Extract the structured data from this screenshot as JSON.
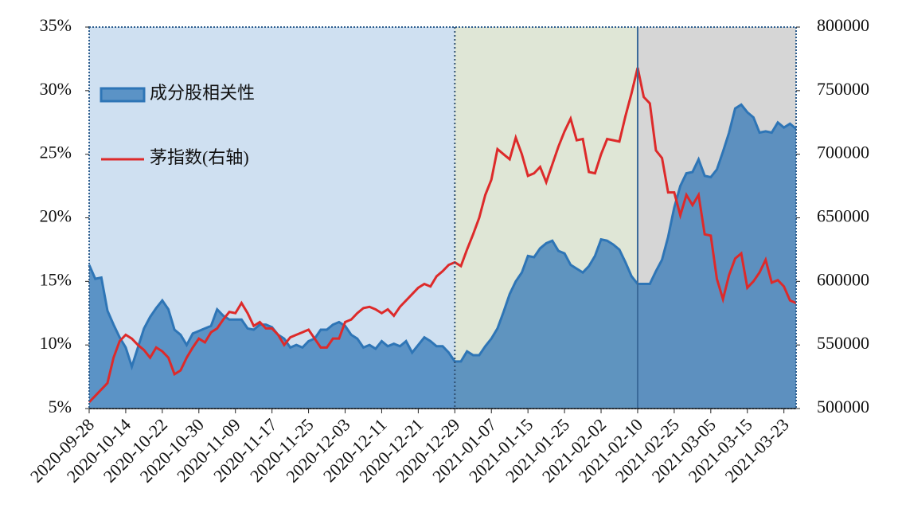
{
  "chart_data": {
    "type": "area-line",
    "categories": [
      "2020-09-28",
      null,
      null,
      null,
      null,
      null,
      "2020-10-14",
      null,
      null,
      null,
      null,
      null,
      "2020-10-22",
      null,
      null,
      null,
      null,
      null,
      "2020-10-30",
      null,
      null,
      null,
      null,
      null,
      "2020-11-09",
      null,
      null,
      null,
      null,
      null,
      "2020-11-17",
      null,
      null,
      null,
      null,
      null,
      "2020-11-25",
      null,
      null,
      null,
      null,
      null,
      "2020-12-03",
      null,
      null,
      null,
      null,
      null,
      "2020-12-11",
      null,
      null,
      null,
      null,
      null,
      "2020-12-21",
      null,
      null,
      null,
      null,
      null,
      "2020-12-29",
      null,
      null,
      null,
      null,
      null,
      "2021-01-07",
      null,
      null,
      null,
      null,
      null,
      "2021-01-15",
      null,
      null,
      null,
      null,
      null,
      "2021-01-25",
      null,
      null,
      null,
      null,
      null,
      "2021-02-02",
      null,
      null,
      null,
      null,
      null,
      "2021-02-10",
      null,
      null,
      null,
      null,
      null,
      "2021-02-25",
      null,
      null,
      null,
      null,
      null,
      "2021-03-05",
      null,
      null,
      null,
      null,
      null,
      "2021-03-15",
      null,
      null,
      null,
      null,
      null,
      "2021-03-23",
      null,
      null
    ],
    "series": [
      {
        "name": "成分股相关性",
        "color": "#2e75b6",
        "kind": "area",
        "values": [
          16.3,
          15.2,
          15.3,
          12.7,
          11.6,
          10.6,
          9.8,
          8.3,
          9.8,
          11.3,
          12.2,
          12.9,
          13.5,
          12.8,
          11.2,
          10.8,
          10.0,
          10.9,
          11.1,
          11.3,
          11.5,
          12.8,
          12.3,
          12.0,
          12.0,
          12.0,
          11.3,
          11.2,
          11.6,
          11.6,
          11.4,
          10.8,
          10.5,
          9.8,
          10.0,
          9.8,
          10.3,
          10.5,
          11.2,
          11.2,
          11.6,
          11.8,
          11.5,
          10.8,
          10.5,
          9.8,
          10.0,
          9.7,
          10.3,
          9.9,
          10.1,
          9.9,
          10.3,
          9.4,
          10.0,
          10.6,
          10.3,
          9.9,
          9.9,
          9.4,
          8.7,
          8.7,
          9.5,
          9.2,
          9.2,
          9.9,
          10.5,
          11.3,
          12.6,
          14.0,
          15.0,
          15.7,
          17.0,
          16.9,
          17.6,
          18.0,
          18.2,
          17.4,
          17.2,
          16.3,
          16.0,
          15.7,
          16.2,
          17.0,
          18.3,
          18.2,
          17.9,
          17.5,
          16.5,
          15.4,
          14.8,
          14.8,
          14.8,
          15.8,
          16.7,
          18.5,
          20.8,
          22.5,
          23.5,
          23.6,
          24.6,
          23.3,
          23.2,
          23.8,
          25.2,
          26.7,
          28.6,
          28.9,
          28.3,
          27.9,
          26.7,
          26.8,
          26.7,
          27.5,
          27.1,
          27.4,
          27.0
        ]
      },
      {
        "name": "茅指数(右轴)",
        "color": "#dd2a2a",
        "kind": "line",
        "axis": "y2",
        "values": [
          505000,
          510000,
          515000,
          520000,
          540000,
          553000,
          558000,
          555000,
          550000,
          546000,
          540000,
          548000,
          545000,
          540000,
          527000,
          530000,
          540000,
          548000,
          555000,
          552000,
          560000,
          563000,
          570000,
          576000,
          575000,
          583000,
          575000,
          565000,
          568000,
          563000,
          563000,
          558000,
          550000,
          556000,
          558000,
          560000,
          562000,
          555000,
          548000,
          548000,
          555000,
          555000,
          568000,
          570000,
          575000,
          579000,
          580000,
          578000,
          575000,
          578000,
          573000,
          580000,
          585000,
          590000,
          595000,
          598000,
          596000,
          604000,
          608000,
          613000,
          615000,
          612000,
          625000,
          637000,
          650000,
          668000,
          680000,
          704000,
          700000,
          696000,
          713000,
          700000,
          683000,
          685000,
          690000,
          678000,
          692000,
          706000,
          718000,
          728000,
          711000,
          712000,
          686000,
          685000,
          700000,
          712000,
          711000,
          710000,
          730000,
          748000,
          768000,
          745000,
          740000,
          703000,
          697000,
          670000,
          670000,
          652000,
          668000,
          660000,
          668000,
          637000,
          636000,
          602000,
          586000,
          605000,
          618000,
          622000,
          595000,
          600000,
          607000,
          617000,
          599000,
          601000,
          596000,
          585000,
          583000
        ]
      }
    ],
    "ylim": [
      5,
      35
    ],
    "yticks": [
      {
        "value": 5,
        "label": "5%"
      },
      {
        "value": 10,
        "label": "10%"
      },
      {
        "value": 15,
        "label": "15%"
      },
      {
        "value": 20,
        "label": "20%"
      },
      {
        "value": 25,
        "label": "25%"
      },
      {
        "value": 30,
        "label": "30%"
      },
      {
        "value": 35,
        "label": "35%"
      }
    ],
    "y2lim": [
      500000,
      800000
    ],
    "y2ticks": [
      500000,
      550000,
      600000,
      650000,
      700000,
      750000,
      800000
    ],
    "periods": [
      {
        "start": 0,
        "end": 60,
        "color": "#cfe0f1"
      },
      {
        "start": 60,
        "end": 90,
        "color": "#dfe6d6"
      },
      {
        "start": 90,
        "end": 116,
        "color": "#d6d6d6"
      }
    ],
    "legend": "upper left"
  }
}
